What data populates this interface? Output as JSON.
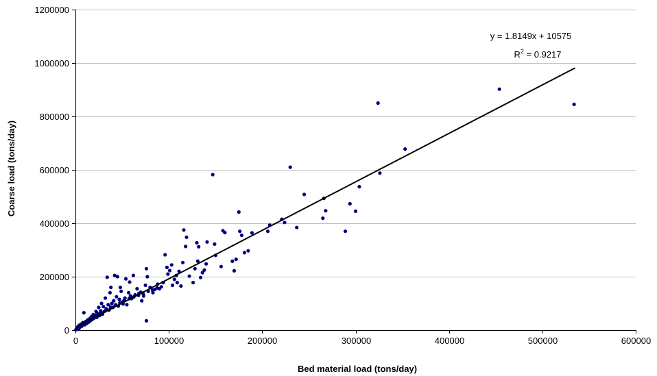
{
  "chart_data": {
    "type": "scatter",
    "title": "",
    "xlabel": "Bed material load (tons/day)",
    "ylabel": "Coarse load (tons/day)",
    "xlim": [
      0,
      600000
    ],
    "ylim": [
      0,
      1200000
    ],
    "x_ticks": [
      0,
      100000,
      200000,
      300000,
      400000,
      500000,
      600000
    ],
    "y_ticks": [
      0,
      200000,
      400000,
      600000,
      800000,
      1000000,
      1200000
    ],
    "x_tick_labels": [
      "0",
      "100000",
      "200000",
      "300000",
      "400000",
      "500000",
      "600000"
    ],
    "y_tick_labels": [
      "0",
      "200000",
      "400000",
      "600000",
      "800000",
      "1000000",
      "1200000"
    ],
    "grid": "horizontal major gridlines",
    "marker_color": "#000080",
    "trendline": {
      "slope": 1.8149,
      "intercept": 10575,
      "x_range": [
        0,
        535000
      ],
      "color": "#000000",
      "equation_label": "y = 1.8149x + 10575",
      "r2_prefix": "R",
      "r2_sup": "2",
      "r2_suffix": " = 0.9217"
    },
    "series": [
      {
        "points": [
          [
            534000,
            845000
          ],
          [
            454000,
            902000
          ],
          [
            324000,
            850000
          ],
          [
            353000,
            678000
          ],
          [
            326000,
            588000
          ],
          [
            304000,
            537000
          ],
          [
            300000,
            445000
          ],
          [
            294000,
            473000
          ],
          [
            289000,
            370000
          ],
          [
            268000,
            447000
          ],
          [
            266000,
            493000
          ],
          [
            265000,
            419000
          ],
          [
            245000,
            508000
          ],
          [
            237000,
            384000
          ],
          [
            230000,
            610000
          ],
          [
            224000,
            403000
          ],
          [
            221000,
            415000
          ],
          [
            208000,
            393000
          ],
          [
            206000,
            370000
          ],
          [
            189000,
            364000
          ],
          [
            185000,
            297000
          ],
          [
            181000,
            290000
          ],
          [
            178000,
            355000
          ],
          [
            176000,
            370000
          ],
          [
            175000,
            442000
          ],
          [
            172000,
            265000
          ],
          [
            170000,
            222000
          ],
          [
            168000,
            258000
          ],
          [
            160000,
            365000
          ],
          [
            158000,
            372000
          ],
          [
            156000,
            238000
          ],
          [
            150000,
            280000
          ],
          [
            149000,
            322000
          ],
          [
            147000,
            582000
          ],
          [
            141000,
            330000
          ],
          [
            140000,
            248000
          ],
          [
            138000,
            225000
          ],
          [
            136000,
            215000
          ],
          [
            134000,
            197000
          ],
          [
            132000,
            312000
          ],
          [
            131000,
            258000
          ],
          [
            130000,
            327000
          ],
          [
            128000,
            230000
          ],
          [
            126000,
            178000
          ],
          [
            122000,
            202000
          ],
          [
            119000,
            348000
          ],
          [
            118000,
            313000
          ],
          [
            116000,
            375000
          ],
          [
            115000,
            253000
          ],
          [
            113000,
            165000
          ],
          [
            111000,
            220000
          ],
          [
            109000,
            178000
          ],
          [
            108000,
            205000
          ],
          [
            106000,
            190000
          ],
          [
            104000,
            168000
          ],
          [
            103000,
            244000
          ],
          [
            101000,
            223000
          ],
          [
            99000,
            210000
          ],
          [
            98000,
            235000
          ],
          [
            96000,
            282000
          ],
          [
            94000,
            178000
          ],
          [
            92000,
            162000
          ],
          [
            90000,
            155000
          ],
          [
            88000,
            172000
          ],
          [
            85000,
            152000
          ],
          [
            83000,
            140000
          ],
          [
            80000,
            160000
          ],
          [
            78000,
            145000
          ],
          [
            77000,
            200000
          ],
          [
            76000,
            230000
          ],
          [
            75000,
            168000
          ],
          [
            76000,
            35000
          ],
          [
            73000,
            128000
          ],
          [
            71000,
            110000
          ],
          [
            70000,
            142000
          ],
          [
            68000,
            138000
          ],
          [
            66000,
            155000
          ],
          [
            64000,
            132000
          ],
          [
            62000,
            205000
          ],
          [
            60000,
            118000
          ],
          [
            59000,
            128000
          ],
          [
            58000,
            180000
          ],
          [
            57000,
            140000
          ],
          [
            55000,
            95000
          ],
          [
            54000,
            192000
          ],
          [
            53000,
            120000
          ],
          [
            52000,
            110000
          ],
          [
            51000,
            98000
          ],
          [
            50000,
            105000
          ],
          [
            49000,
            145000
          ],
          [
            48000,
            160000
          ],
          [
            47000,
            115000
          ],
          [
            46000,
            90000
          ],
          [
            45000,
            200000
          ],
          [
            44000,
            125000
          ],
          [
            43000,
            95000
          ],
          [
            42000,
            205000
          ],
          [
            41000,
            110000
          ],
          [
            40000,
            85000
          ],
          [
            39000,
            100000
          ],
          [
            38000,
            160000
          ],
          [
            37000,
            140000
          ],
          [
            36000,
            75000
          ],
          [
            35000,
            95000
          ],
          [
            34000,
            198000
          ],
          [
            33000,
            80000
          ],
          [
            32000,
            120000
          ],
          [
            31000,
            70000
          ],
          [
            30000,
            88000
          ],
          [
            29000,
            60000
          ],
          [
            28000,
            100000
          ],
          [
            27000,
            72000
          ],
          [
            26000,
            55000
          ],
          [
            25000,
            85000
          ],
          [
            24000,
            62000
          ],
          [
            23000,
            48000
          ],
          [
            22000,
            70000
          ],
          [
            21000,
            52000
          ],
          [
            20000,
            45000
          ],
          [
            19000,
            58000
          ],
          [
            18000,
            40000
          ],
          [
            17000,
            50000
          ],
          [
            16000,
            35000
          ],
          [
            15000,
            42000
          ],
          [
            14000,
            30000
          ],
          [
            13000,
            38000
          ],
          [
            12000,
            25000
          ],
          [
            11000,
            32000
          ],
          [
            10000,
            20000
          ],
          [
            9000,
            65000
          ],
          [
            8000,
            28000
          ],
          [
            7000,
            16000
          ],
          [
            6000,
            22000
          ],
          [
            5000,
            12000
          ],
          [
            4000,
            18000
          ],
          [
            3000,
            9000
          ],
          [
            2000,
            6000
          ],
          [
            1000,
            3000
          ],
          [
            500,
            1500
          ],
          [
            1500,
            8000
          ],
          [
            2500,
            12000
          ],
          [
            3500,
            5000
          ],
          [
            4500,
            10000
          ],
          [
            6500,
            14000
          ],
          [
            9500,
            24000
          ],
          [
            12500,
            34000
          ],
          [
            17500,
            44000
          ],
          [
            22500,
            58000
          ],
          [
            27500,
            66000
          ],
          [
            32500,
            74000
          ],
          [
            37500,
            86000
          ],
          [
            42500,
            92000
          ],
          [
            47500,
            102000
          ],
          [
            52500,
            112000
          ],
          [
            57500,
            118000
          ],
          [
            62500,
            124000
          ],
          [
            67500,
            130000
          ],
          [
            72500,
            136000
          ],
          [
            82500,
            150000
          ],
          [
            87500,
            158000
          ]
        ]
      }
    ]
  }
}
